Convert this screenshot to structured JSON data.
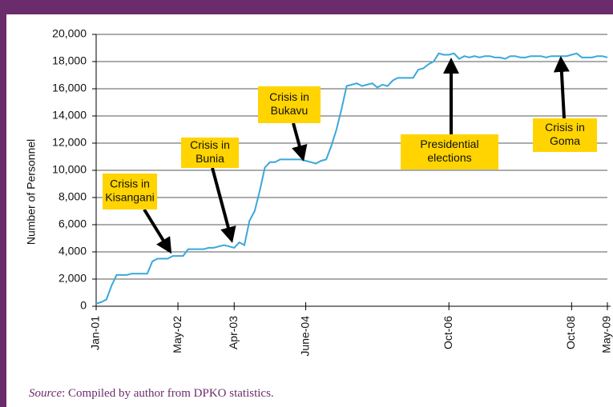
{
  "chart_data": {
    "type": "line",
    "ylabel": "Number of Personnel",
    "x": [
      "2001-01",
      "2001-02",
      "2001-03",
      "2001-04",
      "2001-05",
      "2001-06",
      "2001-07",
      "2001-08",
      "2001-09",
      "2001-10",
      "2001-11",
      "2001-12",
      "2002-01",
      "2002-02",
      "2002-03",
      "2002-04",
      "2002-05",
      "2002-06",
      "2002-07",
      "2002-08",
      "2002-09",
      "2002-10",
      "2002-11",
      "2002-12",
      "2003-01",
      "2003-02",
      "2003-03",
      "2003-04",
      "2003-05",
      "2003-06",
      "2003-07",
      "2003-08",
      "2003-09",
      "2003-10",
      "2003-11",
      "2003-12",
      "2004-01",
      "2004-02",
      "2004-03",
      "2004-04",
      "2004-05",
      "2004-06",
      "2004-07",
      "2004-08",
      "2004-09",
      "2004-10",
      "2004-11",
      "2004-12",
      "2005-01",
      "2005-02",
      "2005-03",
      "2005-04",
      "2005-05",
      "2005-06",
      "2005-07",
      "2005-08",
      "2005-09",
      "2005-10",
      "2005-11",
      "2005-12",
      "2006-01",
      "2006-02",
      "2006-03",
      "2006-04",
      "2006-05",
      "2006-06",
      "2006-07",
      "2006-08",
      "2006-09",
      "2006-10",
      "2006-11",
      "2006-12",
      "2007-01",
      "2007-02",
      "2007-03",
      "2007-04",
      "2007-05",
      "2007-06",
      "2007-07",
      "2007-08",
      "2007-09",
      "2007-10",
      "2007-11",
      "2007-12",
      "2008-01",
      "2008-02",
      "2008-03",
      "2008-04",
      "2008-05",
      "2008-06",
      "2008-07",
      "2008-08",
      "2008-09",
      "2008-10",
      "2008-11",
      "2008-12",
      "2009-01",
      "2009-02",
      "2009-03",
      "2009-04",
      "2009-05"
    ],
    "series": [
      {
        "color": "#3aa8dc",
        "values": [
          200,
          300,
          500,
          1500,
          2300,
          2300,
          2300,
          2400,
          2400,
          2400,
          2400,
          3300,
          3500,
          3500,
          3500,
          3700,
          3700,
          3700,
          4200,
          4200,
          4200,
          4200,
          4300,
          4300,
          4400,
          4500,
          4400,
          4300,
          4700,
          4500,
          6300,
          7000,
          8500,
          10200,
          10600,
          10600,
          10800,
          10800,
          10800,
          10800,
          10800,
          10700,
          10600,
          10500,
          10700,
          10800,
          11800,
          13000,
          14500,
          16200,
          16300,
          16400,
          16200,
          16300,
          16400,
          16100,
          16300,
          16200,
          16600,
          16800,
          16800,
          16800,
          16800,
          17400,
          17500,
          17800,
          18000,
          18600,
          18500,
          18500,
          18600,
          18200,
          18400,
          18300,
          18400,
          18300,
          18400,
          18400,
          18300,
          18300,
          18200,
          18400,
          18400,
          18300,
          18300,
          18400,
          18400,
          18400,
          18300,
          18400,
          18400,
          18400,
          18400,
          18500,
          18600,
          18300,
          18300,
          18300,
          18400,
          18400,
          18300
        ]
      }
    ],
    "xlim": [
      "2001-01",
      "2009-05"
    ],
    "xticks": [
      {
        "value": "2001-01",
        "label": "Jan-01"
      },
      {
        "value": "2002-05",
        "label": "May-02"
      },
      {
        "value": "2003-04",
        "label": "Apr-03"
      },
      {
        "value": "2004-06",
        "label": "June-04"
      },
      {
        "value": "2006-10",
        "label": "Oct-06"
      },
      {
        "value": "2008-10",
        "label": "Oct-08"
      },
      {
        "value": "2009-05",
        "label": "May-09"
      }
    ],
    "ylim": [
      0,
      20000
    ],
    "yticks": [
      0,
      {
        "value": 2000,
        "label": "2,000"
      },
      {
        "value": 4000,
        "label": "4,000"
      },
      {
        "value": 6000,
        "label": "6,000"
      },
      {
        "value": 8000,
        "label": "8,000"
      },
      {
        "value": 10000,
        "label": "10,000"
      },
      {
        "value": 12000,
        "label": "12,000"
      },
      {
        "value": 14000,
        "label": "14,000"
      },
      {
        "value": 16000,
        "label": "16,000"
      },
      {
        "value": 18000,
        "label": "18,000"
      },
      {
        "value": 20000,
        "label": "20,000"
      }
    ],
    "grid": true,
    "annotations": [
      {
        "lines": [
          "Crisis in",
          "Kisangani"
        ]
      },
      {
        "lines": [
          "Crisis in",
          "Bunia"
        ]
      },
      {
        "lines": [
          "Crisis in",
          "Bukavu"
        ]
      },
      {
        "lines": [
          "Presidential",
          "elections"
        ]
      },
      {
        "lines": [
          "Crisis in",
          "Goma"
        ]
      }
    ],
    "source_label": "Source",
    "source_text": ": Compiled by author from DPKO statistics."
  }
}
